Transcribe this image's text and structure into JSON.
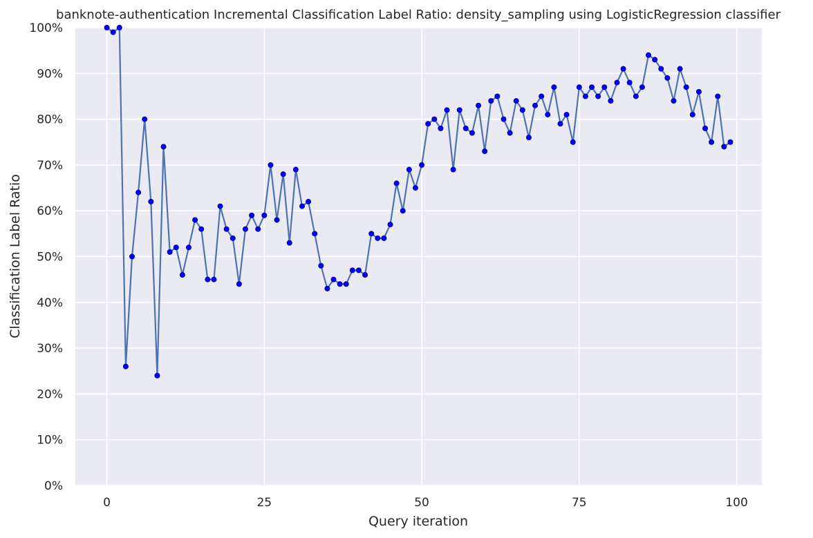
{
  "chart_data": {
    "type": "line",
    "title": "banknote-authentication Incremental Classification Label Ratio: density_sampling using LogisticRegression classifier",
    "xlabel": "Query iteration",
    "ylabel": "Classification Label Ratio",
    "xlim": [
      -5,
      104
    ],
    "ylim": [
      0,
      100
    ],
    "xticks": [
      0,
      25,
      50,
      75,
      100
    ],
    "xtick_labels": [
      "0",
      "25",
      "50",
      "75",
      "100"
    ],
    "yticks": [
      0,
      10,
      20,
      30,
      40,
      50,
      60,
      70,
      80,
      90,
      100
    ],
    "ytick_labels": [
      "0%",
      "10%",
      "20%",
      "30%",
      "40%",
      "50%",
      "60%",
      "70%",
      "80%",
      "90%",
      "100%"
    ],
    "grid": true,
    "legend": "none",
    "colors": {
      "background": "#eaeaf2",
      "grid": "#ffffff",
      "line": "#4c72b0",
      "marker": "#0000ff",
      "marker_edge": "#00008b"
    },
    "series": [
      {
        "x": [
          0,
          1,
          2,
          3,
          4,
          5,
          6,
          7,
          8,
          9,
          10,
          11,
          12,
          13,
          14,
          15,
          16,
          17,
          18,
          19,
          20,
          21,
          22,
          23,
          24,
          25,
          26,
          27,
          28,
          29,
          30,
          31,
          32,
          33,
          34,
          35,
          36,
          37,
          38,
          39,
          40,
          41,
          42,
          43,
          44,
          45,
          46,
          47,
          48,
          49,
          50,
          51,
          52,
          53,
          54,
          55,
          56,
          57,
          58,
          59,
          60,
          61,
          62,
          63,
          64,
          65,
          66,
          67,
          68,
          69,
          70,
          71,
          72,
          73,
          74,
          75,
          76,
          77,
          78,
          79,
          80,
          81,
          82,
          83,
          84,
          85,
          86,
          87,
          88,
          89,
          90,
          91,
          92,
          93,
          94,
          95,
          96,
          97,
          98,
          99
        ],
        "values": [
          100,
          99,
          100,
          26,
          50,
          64,
          80,
          62,
          24,
          74,
          51,
          52,
          46,
          52,
          58,
          56,
          45,
          45,
          61,
          56,
          54,
          44,
          56,
          59,
          56,
          59,
          70,
          58,
          68,
          53,
          69,
          61,
          62,
          55,
          48,
          43,
          45,
          44,
          44,
          47,
          47,
          46,
          55,
          54,
          54,
          57,
          66,
          60,
          69,
          65,
          70,
          79,
          80,
          78,
          82,
          69,
          82,
          78,
          77,
          83,
          73,
          84,
          85,
          80,
          77,
          84,
          82,
          76,
          83,
          85,
          81,
          87,
          79,
          81,
          75,
          87,
          85,
          87,
          85,
          87,
          84,
          88,
          91,
          88,
          85,
          87,
          94,
          93,
          91,
          89,
          84,
          91,
          87,
          81,
          86,
          78,
          75,
          85,
          74,
          75
        ]
      }
    ]
  }
}
